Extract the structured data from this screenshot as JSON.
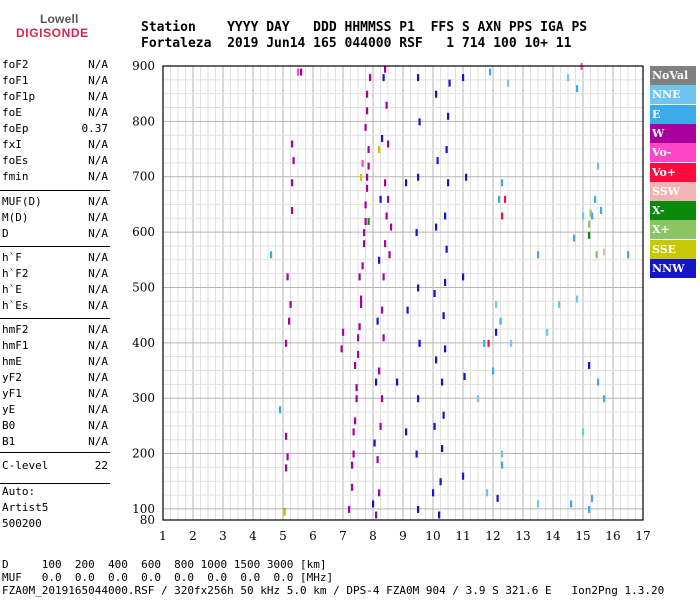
{
  "logo": {
    "line1": "Lowell",
    "line2": "DIGISONDE"
  },
  "header": {
    "labels": "Station    YYYY DAY   DDD HHMMSS P1  FFS S AXN PPS IGA PS",
    "values": "Fortaleza  2019 Jun14 165 044000 RSF   1 714 100 10+ 11"
  },
  "params_group1": [
    {
      "name": "foF2",
      "value": "N/A"
    },
    {
      "name": "foF1",
      "value": "N/A"
    },
    {
      "name": "foF1p",
      "value": "N/A"
    },
    {
      "name": "foE",
      "value": "N/A"
    },
    {
      "name": "foEp",
      "value": "0.37"
    },
    {
      "name": "fxI",
      "value": "N/A"
    },
    {
      "name": "foEs",
      "value": "N/A"
    },
    {
      "name": "fmin",
      "value": "N/A"
    }
  ],
  "params_group2": [
    {
      "name": "MUF(D)",
      "value": "N/A"
    },
    {
      "name": "M(D)",
      "value": "N/A"
    },
    {
      "name": "D",
      "value": "N/A"
    }
  ],
  "params_group3": [
    {
      "name": "h`F",
      "value": "N/A"
    },
    {
      "name": "h`F2",
      "value": "N/A"
    },
    {
      "name": "h`E",
      "value": "N/A"
    },
    {
      "name": "h`Es",
      "value": "N/A"
    }
  ],
  "params_group4": [
    {
      "name": "hmF2",
      "value": "N/A"
    },
    {
      "name": "hmF1",
      "value": "N/A"
    },
    {
      "name": "hmE",
      "value": "N/A"
    },
    {
      "name": "yF2",
      "value": "N/A"
    },
    {
      "name": "yF1",
      "value": "N/A"
    },
    {
      "name": "yE",
      "value": "N/A"
    },
    {
      "name": "B0",
      "value": "N/A"
    },
    {
      "name": "B1",
      "value": "N/A"
    }
  ],
  "params_group5": [
    {
      "name": "C-level",
      "value": "22"
    }
  ],
  "auto": {
    "label": "Auto:",
    "software": "Artist5",
    "version": "500200"
  },
  "legend": [
    {
      "label": "NoVal",
      "color": "#808080"
    },
    {
      "label": "NNE",
      "color": "#6ec6f0"
    },
    {
      "label": "E",
      "color": "#3aaae8"
    },
    {
      "label": "W",
      "color": "#a8009c"
    },
    {
      "label": "Vo-",
      "color": "#ff44c8"
    },
    {
      "label": "Vo+",
      "color": "#ff0a3c"
    },
    {
      "label": "SSW",
      "color": "#f0b4b4"
    },
    {
      "label": "X-",
      "color": "#0a8a0a"
    },
    {
      "label": "X+",
      "color": "#8cc464"
    },
    {
      "label": "SSE",
      "color": "#c8c800"
    },
    {
      "label": "NNW",
      "color": "#1414c8"
    }
  ],
  "footer": {
    "line1": "D     100  200  400  600  800 1000 1500 3000 [km]",
    "line2": "MUF   0.0  0.0  0.0  0.0  0.0  0.0  0.0  0.0 [MHz]",
    "line3": "FZA0M_2019165044000.RSF / 320fx256h 50 kHz 5.0 km / DPS-4 FZA0M 904 / 3.9 S 321.6 E   Ion2Png 1.3.20"
  },
  "chart_data": {
    "type": "scatter",
    "title": "",
    "xlabel": "",
    "ylabel": "",
    "xlim": [
      1,
      17
    ],
    "ylim": [
      80,
      900
    ],
    "x_ticks": [
      "1",
      "2",
      "3",
      "4",
      "5",
      "6",
      "7",
      "8",
      "9",
      "10",
      "11",
      "12",
      "13",
      "14",
      "15",
      "16",
      "17"
    ],
    "y_ticks": [
      "80",
      "100",
      "200",
      "300",
      "400",
      "500",
      "600",
      "700",
      "800",
      "900"
    ],
    "grid": true,
    "series": [
      {
        "name": "W",
        "color": "#a8009c",
        "points": [
          [
            5.05,
            96
          ],
          [
            5.1,
            175
          ],
          [
            5.15,
            195
          ],
          [
            5.1,
            232
          ],
          [
            5.1,
            400
          ],
          [
            5.2,
            440
          ],
          [
            5.25,
            470
          ],
          [
            5.15,
            520
          ],
          [
            5.3,
            640
          ],
          [
            5.3,
            690
          ],
          [
            5.35,
            730
          ],
          [
            5.3,
            760
          ],
          [
            5.6,
            890
          ],
          [
            7.2,
            100
          ],
          [
            7.3,
            140
          ],
          [
            7.35,
            200
          ],
          [
            7.4,
            260
          ],
          [
            7.45,
            320
          ],
          [
            7.5,
            380
          ],
          [
            7.55,
            430
          ],
          [
            7.6,
            480
          ],
          [
            7.65,
            540
          ],
          [
            7.7,
            600
          ],
          [
            7.75,
            650
          ],
          [
            7.8,
            700
          ],
          [
            7.85,
            750
          ],
          [
            7.8,
            820
          ],
          [
            7.9,
            880
          ],
          [
            7.3,
            180
          ],
          [
            7.35,
            240
          ],
          [
            7.45,
            300
          ],
          [
            7.4,
            360
          ],
          [
            7.5,
            410
          ],
          [
            7.6,
            470
          ],
          [
            7.55,
            520
          ],
          [
            7.7,
            580
          ],
          [
            7.75,
            620
          ],
          [
            7.8,
            680
          ],
          [
            7.85,
            720
          ],
          [
            7.75,
            790
          ],
          [
            7.8,
            850
          ],
          [
            8.1,
            90
          ],
          [
            8.2,
            130
          ],
          [
            8.15,
            190
          ],
          [
            8.25,
            250
          ],
          [
            8.3,
            300
          ],
          [
            8.2,
            350
          ],
          [
            8.35,
            410
          ],
          [
            8.3,
            460
          ],
          [
            8.35,
            520
          ],
          [
            8.4,
            580
          ],
          [
            8.45,
            630
          ],
          [
            8.4,
            690
          ],
          [
            8.5,
            760
          ],
          [
            8.45,
            830
          ],
          [
            8.4,
            895
          ],
          [
            8.55,
            560
          ],
          [
            8.6,
            610
          ],
          [
            8.5,
            660
          ],
          [
            6.95,
            390
          ],
          [
            7.0,
            420
          ]
        ]
      },
      {
        "name": "NNW",
        "color": "#1414c8",
        "points": [
          [
            8.0,
            110
          ],
          [
            8.05,
            220
          ],
          [
            8.1,
            330
          ],
          [
            8.15,
            440
          ],
          [
            8.2,
            550
          ],
          [
            8.25,
            660
          ],
          [
            8.3,
            770
          ],
          [
            8.35,
            880
          ],
          [
            9.5,
            100
          ],
          [
            9.45,
            200
          ],
          [
            9.5,
            300
          ],
          [
            9.55,
            400
          ],
          [
            9.5,
            500
          ],
          [
            9.45,
            600
          ],
          [
            9.5,
            700
          ],
          [
            9.55,
            800
          ],
          [
            9.5,
            880
          ],
          [
            10.2,
            90
          ],
          [
            10.25,
            150
          ],
          [
            10.3,
            210
          ],
          [
            10.35,
            270
          ],
          [
            10.3,
            330
          ],
          [
            10.4,
            390
          ],
          [
            10.35,
            450
          ],
          [
            10.4,
            510
          ],
          [
            10.45,
            570
          ],
          [
            10.4,
            630
          ],
          [
            10.5,
            690
          ],
          [
            10.45,
            750
          ],
          [
            10.5,
            810
          ],
          [
            10.55,
            870
          ],
          [
            10.0,
            130
          ],
          [
            10.05,
            250
          ],
          [
            10.1,
            370
          ],
          [
            10.05,
            490
          ],
          [
            10.1,
            610
          ],
          [
            10.15,
            730
          ],
          [
            10.1,
            850
          ],
          [
            11.0,
            160
          ],
          [
            11.05,
            340
          ],
          [
            11.0,
            520
          ],
          [
            11.1,
            700
          ],
          [
            11.0,
            880
          ],
          [
            9.1,
            240
          ],
          [
            9.15,
            460
          ],
          [
            9.1,
            690
          ],
          [
            8.8,
            330
          ],
          [
            12.1,
            420
          ],
          [
            12.15,
            120
          ],
          [
            15.2,
            360
          ]
        ]
      },
      {
        "name": "E",
        "color": "#3aaae8",
        "points": [
          [
            11.9,
            890
          ],
          [
            12.2,
            660
          ],
          [
            12.3,
            690
          ],
          [
            12.25,
            440
          ],
          [
            12.3,
            180
          ],
          [
            11.7,
            400
          ],
          [
            14.7,
            590
          ],
          [
            14.8,
            860
          ],
          [
            15.3,
            630
          ],
          [
            15.4,
            660
          ],
          [
            15.6,
            640
          ],
          [
            15.7,
            300
          ],
          [
            14.6,
            110
          ],
          [
            15.3,
            120
          ],
          [
            16.5,
            560
          ],
          [
            13.5,
            560
          ],
          [
            12.0,
            350
          ],
          [
            15.2,
            100
          ],
          [
            15.5,
            330
          ],
          [
            4.9,
            280
          ],
          [
            4.6,
            560
          ]
        ]
      },
      {
        "name": "NNE",
        "color": "#6ec6f0",
        "points": [
          [
            12.1,
            470
          ],
          [
            12.3,
            200
          ],
          [
            11.5,
            300
          ],
          [
            13.8,
            420
          ],
          [
            14.2,
            470
          ],
          [
            15.0,
            630
          ],
          [
            15.5,
            720
          ],
          [
            12.6,
            400
          ],
          [
            14.5,
            880
          ],
          [
            14.8,
            480
          ],
          [
            15.0,
            240
          ],
          [
            13.5,
            110
          ],
          [
            11.8,
            130
          ],
          [
            12.5,
            870
          ]
        ]
      },
      {
        "name": "Vo+",
        "color": "#ff0a3c",
        "points": [
          [
            12.3,
            630
          ],
          [
            12.4,
            660
          ],
          [
            11.85,
            400
          ]
        ]
      },
      {
        "name": "Vo-",
        "color": "#ff44c8",
        "points": [
          [
            5.5,
            890
          ],
          [
            14.95,
            900
          ],
          [
            7.65,
            725
          ]
        ]
      },
      {
        "name": "SSE",
        "color": "#c8c800",
        "points": [
          [
            7.6,
            700
          ],
          [
            8.2,
            750
          ],
          [
            5.05,
            95
          ]
        ]
      },
      {
        "name": "X+",
        "color": "#8cc464",
        "points": [
          [
            15.25,
            635
          ],
          [
            15.45,
            560
          ],
          [
            15.2,
            615
          ]
        ]
      },
      {
        "name": "X-",
        "color": "#0a8a0a",
        "points": [
          [
            7.85,
            620
          ],
          [
            15.2,
            595
          ]
        ]
      },
      {
        "name": "SSW",
        "color": "#f0b4b4",
        "points": [
          [
            15.7,
            565
          ]
        ]
      }
    ]
  }
}
